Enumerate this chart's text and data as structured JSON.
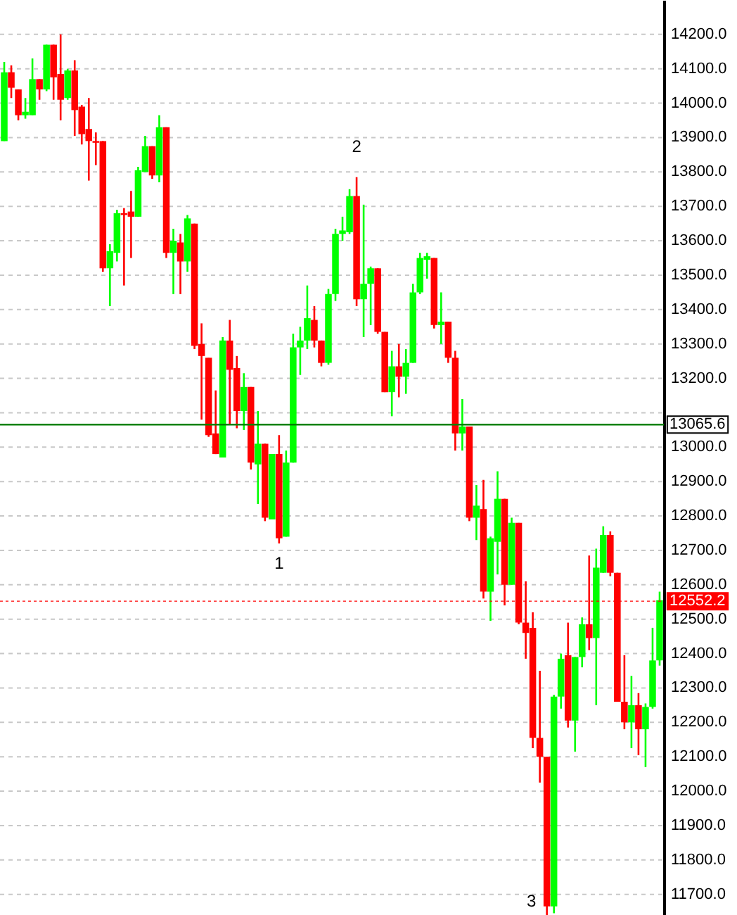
{
  "chart_data": {
    "type": "candlestick",
    "categories": [
      null,
      null,
      null,
      null,
      null,
      null,
      null,
      null,
      null,
      null,
      null,
      null,
      null,
      null,
      null,
      null,
      null,
      null,
      null,
      null,
      null,
      null,
      null,
      null,
      null,
      null,
      null,
      null,
      null,
      null,
      null,
      null,
      null,
      null,
      null,
      null,
      null,
      null,
      null,
      null,
      null,
      null,
      null,
      null,
      null,
      null,
      null,
      null,
      null,
      null,
      null,
      null,
      null,
      null,
      null,
      null,
      null,
      null,
      null,
      null,
      null,
      null,
      null,
      null,
      null,
      null,
      null,
      null,
      null,
      null,
      null,
      null,
      null,
      null,
      null,
      null,
      null,
      null,
      null,
      null,
      null,
      null,
      null,
      null,
      null,
      null,
      null,
      null,
      null,
      null,
      null,
      null,
      null,
      null
    ],
    "ohlc": [
      [
        13890,
        14120,
        13890,
        14090
      ],
      [
        14090,
        14110,
        14015,
        14045
      ],
      [
        14040,
        14040,
        13950,
        13965
      ],
      [
        13965,
        14015,
        13955,
        13975
      ],
      [
        13965,
        14130,
        13965,
        14070
      ],
      [
        14070,
        14070,
        14010,
        14040
      ],
      [
        14040,
        14170,
        14035,
        14170
      ],
      [
        14170,
        14170,
        14010,
        14075
      ],
      [
        14085,
        14200,
        13950,
        14010
      ],
      [
        14015,
        14100,
        14010,
        14095
      ],
      [
        14095,
        14125,
        13905,
        13980
      ],
      [
        13990,
        13995,
        13880,
        13910
      ],
      [
        13925,
        14015,
        13775,
        13890
      ],
      [
        13890,
        13915,
        13820,
        13885
      ],
      [
        13890,
        13890,
        13510,
        13520
      ],
      [
        13520,
        13590,
        13410,
        13570
      ],
      [
        13565,
        13690,
        13540,
        13680
      ],
      [
        13680,
        13695,
        13470,
        13675
      ],
      [
        13685,
        13745,
        13550,
        13670
      ],
      [
        13670,
        13815,
        13670,
        13805
      ],
      [
        13800,
        13905,
        13800,
        13875
      ],
      [
        13875,
        13875,
        13780,
        13790
      ],
      [
        13790,
        13965,
        13770,
        13930
      ],
      [
        13930,
        13930,
        13550,
        13565
      ],
      [
        13565,
        13635,
        13445,
        13600
      ],
      [
        13595,
        13620,
        13445,
        13540
      ],
      [
        13540,
        13675,
        13510,
        13665
      ],
      [
        13650,
        13650,
        13285,
        13295
      ],
      [
        13300,
        13360,
        13080,
        13265
      ],
      [
        13260,
        13260,
        13030,
        13035
      ],
      [
        13040,
        13165,
        12980,
        12980
      ],
      [
        12970,
        13320,
        12970,
        13310
      ],
      [
        13310,
        13370,
        13065,
        13225
      ],
      [
        13230,
        13265,
        13055,
        13105
      ],
      [
        13105,
        13215,
        13050,
        13175
      ],
      [
        13175,
        13175,
        12935,
        12955
      ],
      [
        12950,
        13105,
        12835,
        13010
      ],
      [
        13010,
        13010,
        12785,
        12795
      ],
      [
        12790,
        12980,
        12790,
        12980
      ],
      [
        12980,
        13035,
        12720,
        12735
      ],
      [
        12740,
        12990,
        12740,
        12955
      ],
      [
        12955,
        13330,
        12955,
        13290
      ],
      [
        13290,
        13350,
        13210,
        13310
      ],
      [
        13310,
        13470,
        13285,
        13375
      ],
      [
        13370,
        13410,
        13290,
        13310
      ],
      [
        13310,
        13310,
        13235,
        13245
      ],
      [
        13245,
        13460,
        13240,
        13445
      ],
      [
        13445,
        13635,
        13425,
        13620
      ],
      [
        13620,
        13670,
        13600,
        13630
      ],
      [
        13625,
        13750,
        13620,
        13730
      ],
      [
        13730,
        13785,
        13410,
        13430
      ],
      [
        13430,
        13705,
        13320,
        13475
      ],
      [
        13475,
        13525,
        13355,
        13520
      ],
      [
        13520,
        13520,
        13330,
        13335
      ],
      [
        13335,
        13335,
        13160,
        13160
      ],
      [
        13160,
        13280,
        13090,
        13235
      ],
      [
        13235,
        13300,
        13145,
        13205
      ],
      [
        13205,
        13285,
        13155,
        13245
      ],
      [
        13245,
        13475,
        13245,
        13450
      ],
      [
        13450,
        13565,
        13445,
        13550
      ],
      [
        13545,
        13565,
        13490,
        13555
      ],
      [
        13550,
        13550,
        13345,
        13355
      ],
      [
        13355,
        13450,
        13300,
        13365
      ],
      [
        13365,
        13365,
        13245,
        13260
      ],
      [
        13260,
        13280,
        12990,
        13040
      ],
      [
        13040,
        13140,
        12990,
        13060
      ],
      [
        13060,
        13060,
        12785,
        12795
      ],
      [
        12795,
        12890,
        12730,
        12830
      ],
      [
        12820,
        12905,
        12560,
        12580
      ],
      [
        12580,
        12740,
        12495,
        12735
      ],
      [
        12725,
        12930,
        12630,
        12850
      ],
      [
        12850,
        12850,
        12540,
        12600
      ],
      [
        12600,
        12795,
        12600,
        12780
      ],
      [
        12780,
        12780,
        12485,
        12490
      ],
      [
        12490,
        12610,
        12385,
        12460
      ],
      [
        12475,
        12520,
        12125,
        12155
      ],
      [
        12155,
        12350,
        12025,
        12100
      ],
      [
        12100,
        12100,
        11640,
        11665
      ],
      [
        11665,
        12280,
        11645,
        12275
      ],
      [
        12275,
        12400,
        12240,
        12385
      ],
      [
        12395,
        12490,
        12185,
        12205
      ],
      [
        12205,
        12390,
        12115,
        12390
      ],
      [
        12390,
        12505,
        12360,
        12485
      ],
      [
        12485,
        12685,
        12410,
        12445
      ],
      [
        12445,
        12705,
        12250,
        12650
      ],
      [
        12635,
        12770,
        12635,
        12745
      ],
      [
        12745,
        12755,
        12625,
        12635
      ],
      [
        12635,
        12635,
        12260,
        12260
      ],
      [
        12260,
        12395,
        12180,
        12200
      ],
      [
        12200,
        12335,
        12125,
        12250
      ],
      [
        12250,
        12285,
        12105,
        12180
      ],
      [
        12180,
        12255,
        12070,
        12245
      ],
      [
        12245,
        12475,
        12240,
        12380
      ],
      [
        12380,
        12580,
        12365,
        12555
      ]
    ],
    "colors": [
      "#00ff00",
      "#ff0000",
      "#ff0000",
      "#00ff00",
      "#00ff00",
      "#ff0000",
      "#00ff00",
      "#ff0000",
      "#ff0000",
      "#00ff00",
      "#ff0000",
      "#ff0000",
      "#ff0000",
      "#ff0000",
      "#ff0000",
      "#00ff00",
      "#00ff00",
      "#ff0000",
      "#ff0000",
      "#00ff00",
      "#00ff00",
      "#ff0000",
      "#00ff00",
      "#ff0000",
      "#00ff00",
      "#ff0000",
      "#00ff00",
      "#ff0000",
      "#ff0000",
      "#ff0000",
      "#ff0000",
      "#00ff00",
      "#ff0000",
      "#ff0000",
      "#00ff00",
      "#ff0000",
      "#00ff00",
      "#ff0000",
      "#00ff00",
      "#ff0000",
      "#00ff00",
      "#00ff00",
      "#00ff00",
      "#00ff00",
      "#ff0000",
      "#ff0000",
      "#00ff00",
      "#00ff00",
      "#00ff00",
      "#00ff00",
      "#ff0000",
      "#00ff00",
      "#00ff00",
      "#ff0000",
      "#ff0000",
      "#00ff00",
      "#ff0000",
      "#00ff00",
      "#00ff00",
      "#00ff00",
      "#00ff00",
      "#ff0000",
      "#00ff00",
      "#ff0000",
      "#ff0000",
      "#00ff00",
      "#ff0000",
      "#00ff00",
      "#ff0000",
      "#00ff00",
      "#00ff00",
      "#ff0000",
      "#00ff00",
      "#ff0000",
      "#ff0000",
      "#ff0000",
      "#ff0000",
      "#ff0000",
      "#00ff00",
      "#00ff00",
      "#ff0000",
      "#00ff00",
      "#00ff00",
      "#ff0000",
      "#00ff00",
      "#00ff00",
      "#ff0000",
      "#ff0000",
      "#ff0000",
      "#00ff00",
      "#ff0000",
      "#00ff00",
      "#00ff00",
      "#00ff00"
    ],
    "ylim": [
      11640,
      14300
    ],
    "yticks": [
      {
        "value": 11700,
        "label": "11700.0"
      },
      {
        "value": 11800,
        "label": "11800.0"
      },
      {
        "value": 11900,
        "label": "11900.0"
      },
      {
        "value": 12000,
        "label": "12000.0"
      },
      {
        "value": 12100,
        "label": "12100.0"
      },
      {
        "value": 12200,
        "label": "12200.0"
      },
      {
        "value": 12300,
        "label": "12300.0"
      },
      {
        "value": 12400,
        "label": "12400.0"
      },
      {
        "value": 12500,
        "label": "12500.0"
      },
      {
        "value": 12600,
        "label": "12600.0"
      },
      {
        "value": 12700,
        "label": "12700.0"
      },
      {
        "value": 12800,
        "label": "12800.0"
      },
      {
        "value": 12900,
        "label": "12900.0"
      },
      {
        "value": 13000,
        "label": "13000.0"
      },
      {
        "value": 13100,
        "label": null
      },
      {
        "value": 13200,
        "label": "13200.0"
      },
      {
        "value": 13300,
        "label": "13300.0"
      },
      {
        "value": 13400,
        "label": "13400.0"
      },
      {
        "value": 13500,
        "label": "13500.0"
      },
      {
        "value": 13600,
        "label": "13600.0"
      },
      {
        "value": 13700,
        "label": "13700.0"
      },
      {
        "value": 13800,
        "label": "13800.0"
      },
      {
        "value": 13900,
        "label": "13900.0"
      },
      {
        "value": 14000,
        "label": "14000.0"
      },
      {
        "value": 14100,
        "label": "14100.0"
      },
      {
        "value": 14200,
        "label": "14200.0"
      }
    ],
    "grid": "y",
    "ref_lines": [
      {
        "axis": "y",
        "value": 13065.6,
        "label": "13065.6",
        "color": "#008000",
        "line_style": "solid"
      },
      {
        "axis": "y",
        "value": 12552.2,
        "label": "12552.2",
        "color": "#ff0000",
        "line_style": "dotted"
      }
    ],
    "annotations": [
      {
        "text": "1",
        "y": 12720
      },
      {
        "text": "2",
        "y": 13785
      },
      "3"
    ]
  }
}
